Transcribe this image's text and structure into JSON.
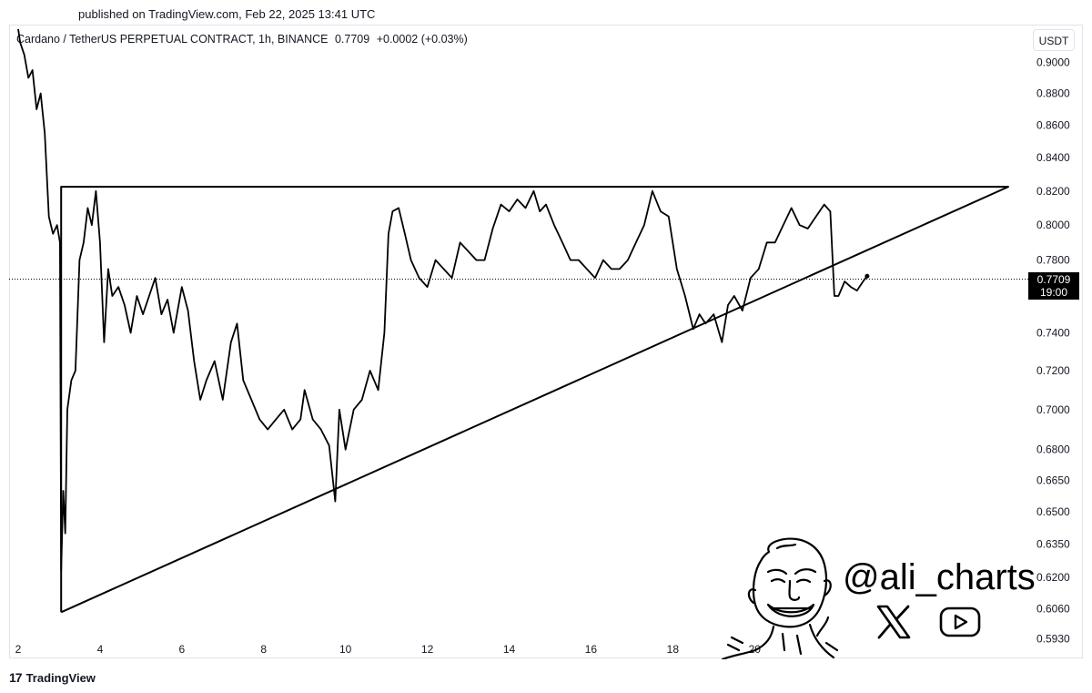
{
  "header": {
    "published": "published on TradingView.com, Feb 22, 2025 13:41 UTC"
  },
  "legend": {
    "pair": "Cardano / TetherUS PERPETUAL CONTRACT, 1h, BINANCE",
    "price": "0.7709",
    "change": "+0.0002 (+0.03%)"
  },
  "currency_button": "USDT",
  "price_tag": {
    "price": "0.7709",
    "countdown": "19:00"
  },
  "footer": {
    "brand": "TradingView"
  },
  "watermark": {
    "handle": "@ali_charts",
    "icons": [
      "x-logo-icon",
      "youtube-icon"
    ]
  },
  "colors": {
    "line": "#000000",
    "grid_border": "#e0e3eb",
    "price_tag_bg": "#000000"
  },
  "chart_data": {
    "type": "line",
    "title": "Cardano / TetherUS PERPETUAL CONTRACT, 1h, BINANCE",
    "ylabel": "USDT",
    "y_scale": "log",
    "ylim": [
      0.585,
      0.925
    ],
    "xlim": [
      2,
      26.2
    ],
    "x_ticks": [
      "2",
      "4",
      "6",
      "8",
      "10",
      "12",
      "14",
      "16",
      "18",
      "20"
    ],
    "y_ticks": [
      "0.9000",
      "0.8800",
      "0.8600",
      "0.8400",
      "0.8200",
      "0.8000",
      "0.7800",
      "0.7400",
      "0.7200",
      "0.7000",
      "0.6800",
      "0.6650",
      "0.6500",
      "0.6350",
      "0.6200",
      "0.6060",
      "0.5930"
    ],
    "last_price": 0.7709,
    "series": [
      {
        "x": [
          2,
          2.05,
          2.15,
          2.25,
          2.35,
          2.45,
          2.55,
          2.65,
          2.75,
          2.85,
          2.95,
          3.02,
          3.05,
          3.1,
          3.15,
          3.2,
          3.3,
          3.4,
          3.5,
          3.6,
          3.7,
          3.8,
          3.9,
          4.0,
          4.1,
          4.2,
          4.3,
          4.45,
          4.6,
          4.75,
          4.9,
          5.05,
          5.2,
          5.35,
          5.5,
          5.65,
          5.8,
          6.0,
          6.15,
          6.3,
          6.45,
          6.6,
          6.8,
          7.0,
          7.2,
          7.35,
          7.5,
          7.7,
          7.9,
          8.1,
          8.3,
          8.5,
          8.7,
          8.9,
          9.0,
          9.2,
          9.4,
          9.6,
          9.75,
          9.85,
          10.0,
          10.2,
          10.4,
          10.6,
          10.8,
          10.95,
          11.05,
          11.15,
          11.3,
          11.45,
          11.6,
          11.8,
          12.0,
          12.2,
          12.4,
          12.6,
          12.8,
          13.0,
          13.2,
          13.4,
          13.6,
          13.8,
          14.0,
          14.2,
          14.4,
          14.6,
          14.75,
          14.9,
          15.1,
          15.3,
          15.5,
          15.7,
          15.9,
          16.1,
          16.3,
          16.5,
          16.7,
          16.9,
          17.1,
          17.3,
          17.5,
          17.7,
          17.9,
          18.1,
          18.3,
          18.5,
          18.65,
          18.8,
          19.0,
          19.2,
          19.35,
          19.5,
          19.7,
          19.9,
          20.1,
          20.3,
          20.5,
          20.7,
          20.9,
          21.1,
          21.3,
          21.5,
          21.7,
          21.85,
          21.95,
          22.05,
          22.2,
          22.35,
          22.5,
          22.65,
          22.75
        ],
        "y": [
          0.922,
          0.913,
          0.905,
          0.89,
          0.895,
          0.87,
          0.88,
          0.855,
          0.805,
          0.795,
          0.8,
          0.79,
          0.623,
          0.66,
          0.64,
          0.7,
          0.715,
          0.72,
          0.78,
          0.79,
          0.81,
          0.8,
          0.82,
          0.79,
          0.735,
          0.775,
          0.76,
          0.765,
          0.755,
          0.74,
          0.76,
          0.75,
          0.76,
          0.77,
          0.75,
          0.758,
          0.74,
          0.765,
          0.752,
          0.725,
          0.705,
          0.715,
          0.725,
          0.705,
          0.735,
          0.745,
          0.715,
          0.705,
          0.695,
          0.69,
          0.695,
          0.7,
          0.69,
          0.695,
          0.71,
          0.695,
          0.69,
          0.682,
          0.655,
          0.7,
          0.68,
          0.7,
          0.705,
          0.72,
          0.71,
          0.74,
          0.795,
          0.808,
          0.81,
          0.795,
          0.78,
          0.77,
          0.765,
          0.78,
          0.775,
          0.77,
          0.79,
          0.785,
          0.78,
          0.78,
          0.798,
          0.812,
          0.808,
          0.815,
          0.81,
          0.82,
          0.808,
          0.812,
          0.8,
          0.79,
          0.78,
          0.78,
          0.775,
          0.77,
          0.78,
          0.775,
          0.775,
          0.78,
          0.79,
          0.8,
          0.82,
          0.808,
          0.805,
          0.775,
          0.76,
          0.742,
          0.75,
          0.745,
          0.75,
          0.735,
          0.755,
          0.76,
          0.752,
          0.77,
          0.775,
          0.79,
          0.79,
          0.8,
          0.81,
          0.8,
          0.798,
          0.805,
          0.812,
          0.808,
          0.76,
          0.76,
          0.768,
          0.765,
          0.763,
          0.768,
          0.771
        ]
      },
      {
        "x": [
          3.05,
          3.05,
          26.2,
          3.05
        ],
        "y": [
          0.6045,
          0.8225,
          0.8225,
          0.6045
        ]
      }
    ]
  }
}
